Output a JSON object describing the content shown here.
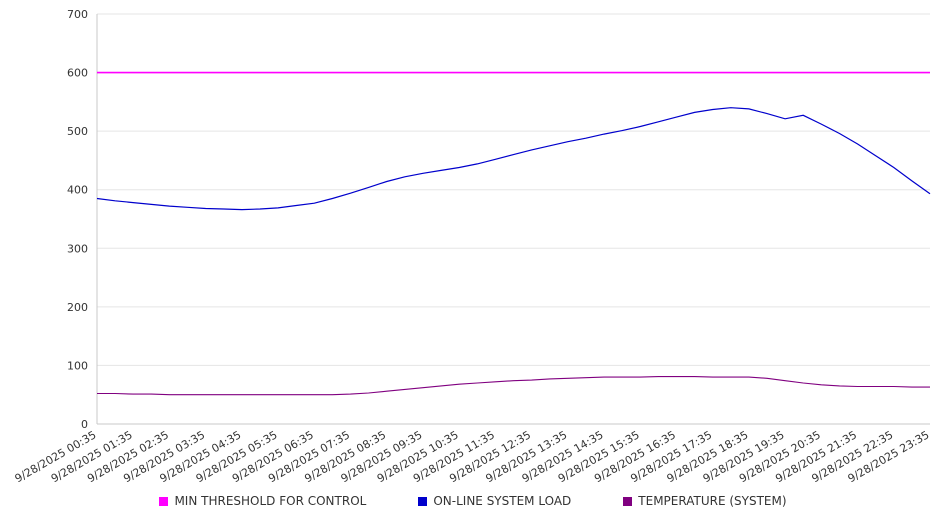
{
  "chart_data": {
    "type": "line",
    "title": "",
    "xlabel": "",
    "ylabel": "",
    "ylim": [
      0,
      700
    ],
    "y_ticks": [
      0,
      100,
      200,
      300,
      400,
      500,
      600,
      700
    ],
    "grid": "horizontal",
    "legend_position": "bottom",
    "x_tick_labels": [
      "9/28/2025 00:35",
      "9/28/2025 01:35",
      "9/28/2025 02:35",
      "9/28/2025 03:35",
      "9/28/2025 04:35",
      "9/28/2025 05:35",
      "9/28/2025 06:35",
      "9/28/2025 07:35",
      "9/28/2025 08:35",
      "9/28/2025 09:35",
      "9/28/2025 10:35",
      "9/28/2025 11:35",
      "9/28/2025 12:35",
      "9/28/2025 13:35",
      "9/28/2025 14:35",
      "9/28/2025 15:35",
      "9/28/2025 16:35",
      "9/28/2025 17:35",
      "9/28/2025 18:35",
      "9/28/2025 19:35",
      "9/28/2025 20:35",
      "9/28/2025 21:35",
      "9/28/2025 22:35",
      "9/28/2025 23:35"
    ],
    "sample_interval_minutes": 30,
    "series": [
      {
        "id": "min-threshold",
        "name": "MIN THRESHOLD FOR CONTROL",
        "color": "#ff00ff",
        "stroke_width": 1.6,
        "values": [
          600,
          600,
          600,
          600,
          600,
          600,
          600,
          600,
          600,
          600,
          600,
          600,
          600,
          600,
          600,
          600,
          600,
          600,
          600,
          600,
          600,
          600,
          600,
          600,
          600,
          600,
          600,
          600,
          600,
          600,
          600,
          600,
          600,
          600,
          600,
          600,
          600,
          600,
          600,
          600,
          600,
          600,
          600,
          600,
          600,
          600,
          600
        ]
      },
      {
        "id": "system-load",
        "name": "ON-LINE SYSTEM LOAD",
        "color": "#0000cc",
        "stroke_width": 1.2,
        "values": [
          385,
          381,
          378,
          375,
          372,
          370,
          368,
          367,
          366,
          367,
          369,
          373,
          377,
          385,
          394,
          404,
          414,
          422,
          428,
          433,
          438,
          444,
          452,
          460,
          468,
          475,
          482,
          488,
          495,
          501,
          508,
          516,
          524,
          532,
          537,
          540,
          538,
          530,
          521,
          527,
          512,
          496,
          478,
          458,
          438,
          415,
          393
        ]
      },
      {
        "id": "temperature",
        "name": "TEMPERATURE (SYSTEM)",
        "color": "#800080",
        "stroke_width": 1.1,
        "values": [
          52,
          52,
          51,
          51,
          50,
          50,
          50,
          50,
          50,
          50,
          50,
          50,
          50,
          50,
          51,
          53,
          56,
          59,
          62,
          65,
          68,
          70,
          72,
          74,
          75,
          77,
          78,
          79,
          80,
          80,
          80,
          81,
          81,
          81,
          80,
          80,
          80,
          78,
          74,
          70,
          67,
          65,
          64,
          64,
          64,
          63,
          63
        ]
      }
    ]
  },
  "colors": {
    "background": "#ffffff",
    "grid": "#e5e5e5",
    "axis": "#c9c9c9",
    "tick_label": "#333333",
    "legend_text": "#333333"
  }
}
